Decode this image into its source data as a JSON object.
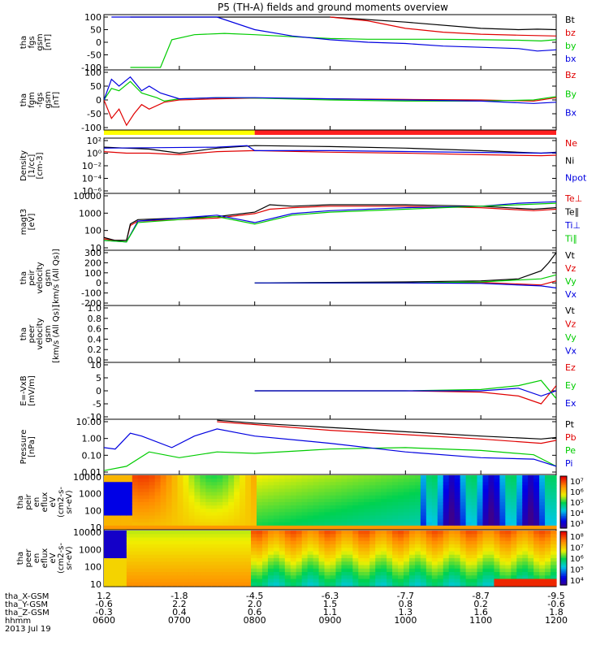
{
  "title": "P5 (TH-A) fields and ground moments overview",
  "chart_data": [
    {
      "type": "line",
      "ylabel": [
        "tha",
        "fgs",
        "gsm",
        "[nT]"
      ],
      "yticks": [
        "100",
        "50",
        "0",
        "-50",
        "-100"
      ],
      "ylim": [
        -100,
        100
      ],
      "legend": [
        {
          "label": "Bt",
          "color": "#000000"
        },
        {
          "label": "bz",
          "color": "#e00000"
        },
        {
          "label": "by",
          "color": "#00cc00"
        },
        {
          "label": "bx",
          "color": "#0000e0"
        }
      ],
      "series": [
        {
          "name": "Bt",
          "color": "#000000",
          "x": [
            0.35,
            0.55,
            0.8,
            1.0,
            1.5,
            2.0,
            3.0,
            4.0,
            5.0,
            5.5,
            5.75,
            6.0
          ],
          "y": [
            100,
            100,
            100,
            100,
            100,
            100,
            100,
            80,
            55,
            50,
            52,
            50
          ]
        },
        {
          "name": "bz",
          "color": "#e00000",
          "x": [
            3.0,
            3.5,
            4.0,
            4.5,
            5.0,
            5.5,
            6.0
          ],
          "y": [
            100,
            85,
            55,
            40,
            32,
            28,
            25
          ]
        },
        {
          "name": "by",
          "color": "#00cc00",
          "x": [
            0.35,
            0.6,
            0.75,
            0.9,
            1.2,
            1.6,
            2.0,
            2.5,
            3.0,
            3.5,
            4.0,
            4.5,
            5.0,
            5.5,
            5.8,
            6.0
          ],
          "y": [
            -100,
            -100,
            -100,
            10,
            30,
            35,
            30,
            22,
            15,
            12,
            12,
            12,
            10,
            8,
            5,
            10
          ]
        },
        {
          "name": "bx",
          "color": "#0000e0",
          "x": [
            0.1,
            0.2,
            0.35,
            1.5,
            2.0,
            2.5,
            3.0,
            3.5,
            4.0,
            4.5,
            5.0,
            5.5,
            5.75,
            6.0
          ],
          "y": [
            100,
            100,
            100,
            100,
            50,
            25,
            10,
            0,
            -5,
            -15,
            -20,
            -25,
            -35,
            -30
          ]
        }
      ]
    },
    {
      "type": "line",
      "ylabel": [
        "tha",
        "fgm",
        "-fgs",
        "gsm",
        "[nT]"
      ],
      "yticks": [
        "100",
        "50",
        "0",
        "-50",
        "-100"
      ],
      "ylim": [
        -120,
        120
      ],
      "legend": [
        {
          "label": "Bz",
          "color": "#e00000"
        },
        {
          "label": "By",
          "color": "#00cc00"
        },
        {
          "label": "Bx",
          "color": "#0000e0"
        }
      ],
      "series": [
        {
          "name": "Bz",
          "color": "#e00000",
          "x": [
            0,
            0.1,
            0.2,
            0.3,
            0.4,
            0.5,
            0.6,
            0.8,
            1.0,
            1.5,
            2.0,
            3.0,
            4.0,
            5.0,
            5.7,
            6.0
          ],
          "y": [
            0,
            -80,
            -40,
            -110,
            -60,
            -20,
            -40,
            -10,
            0,
            5,
            8,
            5,
            2,
            0,
            -5,
            10
          ]
        },
        {
          "name": "By",
          "color": "#00cc00",
          "x": [
            0,
            0.1,
            0.2,
            0.35,
            0.5,
            0.7,
            0.8,
            1.0,
            1.5,
            2.0,
            3.0,
            4.0,
            5.0,
            5.7,
            6.0
          ],
          "y": [
            0,
            50,
            40,
            80,
            30,
            10,
            -5,
            5,
            10,
            8,
            0,
            -5,
            -5,
            0,
            15
          ]
        },
        {
          "name": "Bx",
          "color": "#0000e0",
          "x": [
            0,
            0.1,
            0.2,
            0.35,
            0.5,
            0.6,
            0.75,
            1.0,
            1.5,
            2.0,
            3.0,
            4.0,
            5.0,
            5.7,
            6.0
          ],
          "y": [
            0,
            90,
            60,
            100,
            40,
            60,
            30,
            5,
            10,
            10,
            5,
            0,
            -5,
            -15,
            -10
          ]
        }
      ]
    },
    {
      "type": "line",
      "ylabel": [
        "Density",
        "[1/cc]",
        "[cm-3]"
      ],
      "yticks": [
        "10²",
        "10⁰",
        "10⁻²",
        "10⁻⁴",
        "10⁻⁶"
      ],
      "ylim": [
        -7,
        3
      ],
      "log": true,
      "legend": [
        {
          "label": "Ne",
          "color": "#e00000"
        },
        {
          "label": "Ni",
          "color": "#000000"
        },
        {
          "label": "Npot",
          "color": "#0000e0"
        }
      ],
      "series": [
        {
          "name": "Ne",
          "color": "#e00000",
          "x": [
            0,
            0.3,
            0.6,
            1.0,
            1.5,
            2.0,
            3.0,
            4.0,
            5.0,
            5.8,
            6.0
          ],
          "y": [
            0.8,
            0.5,
            0.5,
            0.2,
            0.8,
            1.0,
            0.7,
            0.5,
            0.2,
            0,
            0.1
          ]
        },
        {
          "name": "Ni",
          "color": "#000000",
          "x": [
            0,
            0.3,
            0.6,
            1.0,
            1.5,
            2.0,
            3.0,
            4.0,
            5.0,
            5.8,
            6.0
          ],
          "y": [
            1.7,
            1.5,
            1.3,
            0.5,
            1.5,
            2.0,
            1.8,
            1.5,
            1.0,
            0.5,
            0.7
          ]
        },
        {
          "name": "Npot",
          "color": "#0000e0",
          "x": [
            0,
            1.5,
            1.9,
            2.0,
            3.0,
            5.8,
            6.0
          ],
          "y": [
            1.5,
            1.7,
            2.0,
            1.0,
            1.0,
            0.5,
            0.6
          ]
        }
      ]
    },
    {
      "type": "line",
      "ylabel": [
        "magt3",
        "[eV]"
      ],
      "yticks": [
        "10000",
        "1000",
        "100",
        "10"
      ],
      "ylim": [
        0.7,
        4.2
      ],
      "log": true,
      "legend": [
        {
          "label": "Te⊥",
          "color": "#e00000"
        },
        {
          "label": "Te∥",
          "color": "#000000"
        },
        {
          "label": "Ti⊥",
          "color": "#0000e0"
        },
        {
          "label": "Ti∥",
          "color": "#00cc00"
        }
      ],
      "series": [
        {
          "name": "Te⊥",
          "color": "#e00000",
          "x": [
            0,
            0.15,
            0.3,
            0.35,
            0.45,
            1.0,
            1.5,
            2.0,
            2.2,
            2.5,
            3.0,
            4.0,
            5.0,
            5.7,
            6.0
          ],
          "y": [
            1.3,
            1.2,
            1.2,
            2.2,
            2.5,
            2.6,
            2.7,
            3.0,
            3.3,
            3.4,
            3.5,
            3.5,
            3.4,
            3.2,
            3.3
          ]
        },
        {
          "name": "Te∥",
          "color": "#000000",
          "x": [
            0,
            0.15,
            0.3,
            0.35,
            0.45,
            1.0,
            1.5,
            2.0,
            2.2,
            2.5,
            3.0,
            4.0,
            5.0,
            5.7,
            6.0
          ],
          "y": [
            1.4,
            1.2,
            1.2,
            2.3,
            2.6,
            2.7,
            2.8,
            3.1,
            3.6,
            3.5,
            3.6,
            3.6,
            3.5,
            3.3,
            3.4
          ]
        },
        {
          "name": "Ti⊥",
          "color": "#0000e0",
          "x": [
            0,
            0.3,
            0.45,
            1.0,
            1.5,
            2.0,
            2.5,
            3.0,
            4.0,
            5.0,
            5.5,
            6.0
          ],
          "y": [
            1.2,
            1.1,
            2.5,
            2.7,
            2.9,
            2.4,
            3.0,
            3.2,
            3.4,
            3.5,
            3.7,
            3.8
          ]
        },
        {
          "name": "Ti∥",
          "color": "#00cc00",
          "x": [
            0,
            0.3,
            0.45,
            1.0,
            1.5,
            2.0,
            2.5,
            3.0,
            4.0,
            5.0,
            5.5,
            6.0
          ],
          "y": [
            1.2,
            1.1,
            2.4,
            2.6,
            2.8,
            2.3,
            2.9,
            3.1,
            3.3,
            3.5,
            3.6,
            3.7
          ]
        }
      ]
    },
    {
      "type": "line",
      "ylabel": [
        "tha",
        "peir",
        "velocity",
        "gsm",
        "[km/s (All Qs)]"
      ],
      "yticks": [
        "300",
        "200",
        "100",
        "0",
        "-100",
        "-200"
      ],
      "ylim": [
        -200,
        300
      ],
      "legend": [
        {
          "label": "Vt",
          "color": "#000000"
        },
        {
          "label": "Vz",
          "color": "#e00000"
        },
        {
          "label": "Vy",
          "color": "#00cc00"
        },
        {
          "label": "Vx",
          "color": "#0000e0"
        }
      ],
      "series": [
        {
          "name": "Vt",
          "color": "#000000",
          "x": [
            2.0,
            3.0,
            4.0,
            5.0,
            5.5,
            5.8,
            5.9,
            6.0
          ],
          "y": [
            0,
            5,
            10,
            20,
            40,
            120,
            200,
            300
          ]
        },
        {
          "name": "Vz",
          "color": "#e00000",
          "x": [
            2.0,
            3.0,
            4.0,
            5.0,
            5.8,
            6.0
          ],
          "y": [
            0,
            0,
            0,
            5,
            -20,
            20
          ]
        },
        {
          "name": "Vy",
          "color": "#00cc00",
          "x": [
            2.0,
            3.0,
            4.0,
            5.0,
            5.8,
            6.0
          ],
          "y": [
            0,
            0,
            0,
            10,
            40,
            80
          ]
        },
        {
          "name": "Vx",
          "color": "#0000e0",
          "x": [
            2.0,
            3.0,
            4.0,
            5.0,
            5.8,
            6.0
          ],
          "y": [
            0,
            0,
            0,
            -5,
            -30,
            -50
          ]
        }
      ]
    },
    {
      "type": "line",
      "ylabel": [
        "tha",
        "peer",
        "velocity",
        "gsm",
        "[km/s (All Qs)]"
      ],
      "yticks": [
        "1.0",
        "0.8",
        "0.6",
        "0.4",
        "0.2",
        "0.0"
      ],
      "ylim": [
        0,
        1
      ],
      "legend": [
        {
          "label": "Vt",
          "color": "#000000"
        },
        {
          "label": "Vz",
          "color": "#e00000"
        },
        {
          "label": "Vy",
          "color": "#00cc00"
        },
        {
          "label": "Vx",
          "color": "#0000e0"
        }
      ],
      "series": []
    },
    {
      "type": "line",
      "ylabel": [
        "E=-VxB",
        "[mV/m]"
      ],
      "yticks": [
        "10",
        "5",
        "0",
        "-5",
        "-10"
      ],
      "ylim": [
        -10,
        10
      ],
      "legend": [
        {
          "label": "Ez",
          "color": "#e00000"
        },
        {
          "label": "Ey",
          "color": "#00cc00"
        },
        {
          "label": "Ex",
          "color": "#0000e0"
        }
      ],
      "series": [
        {
          "name": "Ez",
          "color": "#e00000",
          "x": [
            2.0,
            3.0,
            4.0,
            5.0,
            5.5,
            5.8,
            6.0
          ],
          "y": [
            0,
            0,
            0,
            -0.5,
            -2,
            -5,
            2
          ]
        },
        {
          "name": "Ey",
          "color": "#00cc00",
          "x": [
            2.0,
            3.0,
            4.0,
            5.0,
            5.5,
            5.8,
            6.0
          ],
          "y": [
            0,
            0,
            0,
            0.5,
            2,
            4,
            -3
          ]
        },
        {
          "name": "Ex",
          "color": "#0000e0",
          "x": [
            2.0,
            3.0,
            4.0,
            5.0,
            5.5,
            5.8,
            6.0
          ],
          "y": [
            0,
            0,
            0,
            0,
            1,
            -2,
            0
          ]
        }
      ]
    },
    {
      "type": "line",
      "ylabel": [
        "Pressure",
        "[nPa]"
      ],
      "yticks": [
        "10.00",
        "1.00",
        "0.10",
        "0.01"
      ],
      "ylim": [
        -2.2,
        1.3
      ],
      "log": true,
      "legend": [
        {
          "label": "Pt",
          "color": "#000000"
        },
        {
          "label": "Pb",
          "color": "#e00000"
        },
        {
          "label": "Pe",
          "color": "#00cc00"
        },
        {
          "label": "Pi",
          "color": "#0000e0"
        }
      ],
      "series": [
        {
          "name": "Pt",
          "color": "#000000",
          "x": [
            1.5,
            2.0,
            3.0,
            4.0,
            5.0,
            5.8,
            6.0
          ],
          "y": [
            1.4,
            1.2,
            0.9,
            0.6,
            0.3,
            0.1,
            0.2
          ]
        },
        {
          "name": "Pb",
          "color": "#e00000",
          "x": [
            1.5,
            2.0,
            3.0,
            4.0,
            5.0,
            5.8,
            6.0
          ],
          "y": [
            1.3,
            1.1,
            0.7,
            0.4,
            0.1,
            -0.2,
            0
          ]
        },
        {
          "name": "Pe",
          "color": "#00cc00",
          "x": [
            0,
            0.3,
            0.6,
            1.0,
            1.5,
            2.0,
            3.0,
            4.0,
            5.0,
            5.7,
            6.0
          ],
          "y": [
            -2.1,
            -1.8,
            -0.8,
            -1.2,
            -0.8,
            -0.9,
            -0.6,
            -0.5,
            -0.7,
            -1.0,
            -1.8
          ]
        },
        {
          "name": "Pi",
          "color": "#0000e0",
          "x": [
            0,
            0.15,
            0.35,
            0.5,
            0.9,
            1.2,
            1.5,
            1.8,
            2.0,
            3.0,
            4.0,
            5.0,
            5.7,
            6.0
          ],
          "y": [
            -0.5,
            -0.6,
            0.5,
            0.3,
            -0.5,
            0.3,
            0.8,
            0.5,
            0.3,
            -0.2,
            -0.8,
            -1.2,
            -1.3,
            -1.8
          ]
        }
      ]
    },
    {
      "type": "heatmap",
      "ylabel": [
        "tha",
        "peir",
        "en",
        "eflux",
        "eV",
        "(cm2-s-",
        "sr-eV)"
      ],
      "yticks": [
        "10000",
        "1000",
        "100",
        "10"
      ],
      "colorbar_ticks": [
        "10⁷",
        "10⁶",
        "10⁵",
        "10⁴",
        "10³"
      ]
    },
    {
      "type": "heatmap",
      "ylabel": [
        "tha",
        "peer",
        "en",
        "eflux",
        "eV",
        "(cm2-s-",
        "sr-eV)"
      ],
      "yticks": [
        "10000",
        "1000",
        "100",
        "10"
      ],
      "colorbar_ticks": [
        "10⁸",
        "10⁷",
        "10⁶",
        "10⁵",
        "10⁴"
      ]
    }
  ],
  "mode_bar": {
    "segments": [
      {
        "from": 0,
        "to": 2.0,
        "color": "#ffff00"
      },
      {
        "from": 2.0,
        "to": 6.0,
        "color": "#ff2020"
      }
    ]
  },
  "xaxis": {
    "row_labels": [
      "tha_X-GSM",
      "tha_Y-GSM",
      "tha_Z-GSM",
      "hhmm",
      "2013 Jul 19"
    ],
    "columns": [
      [
        "1.2",
        "-0.6",
        "-0.3",
        "0600"
      ],
      [
        "-1.8",
        "2.2",
        "0.4",
        "0700"
      ],
      [
        "-4.5",
        "2.0",
        "0.6",
        "0800"
      ],
      [
        "-6.3",
        "1.5",
        "1.1",
        "0900"
      ],
      [
        "-7.7",
        "0.8",
        "1.3",
        "1000"
      ],
      [
        "-8.7",
        "0.2",
        "1.6",
        "1100"
      ],
      [
        "-9.5",
        "-0.6",
        "1.8",
        "1200"
      ]
    ]
  }
}
